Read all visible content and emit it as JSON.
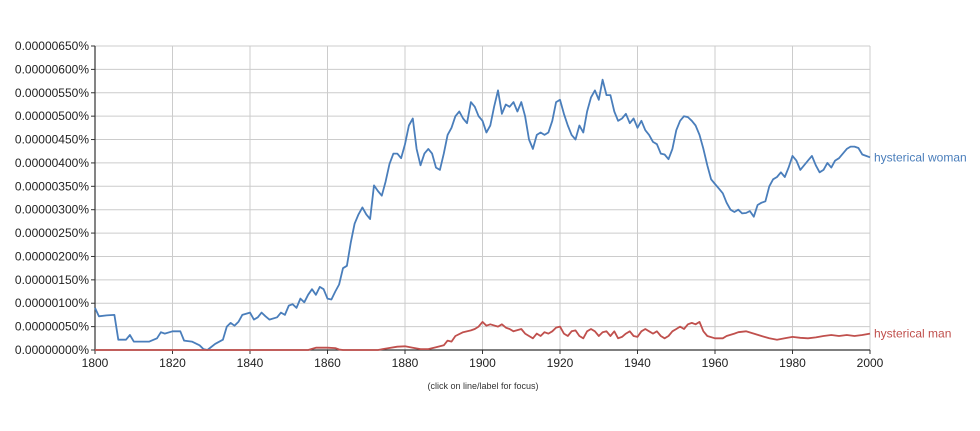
{
  "chart_data": {
    "type": "line",
    "title": "",
    "xlabel": "",
    "ylabel": "",
    "xlim": [
      1800,
      2000
    ],
    "ylim": [
      0,
      6.5e-06
    ],
    "grid": true,
    "x_ticks": [
      1800,
      1820,
      1840,
      1860,
      1880,
      1900,
      1920,
      1940,
      1960,
      1980,
      2000
    ],
    "y_ticks": [
      "0.00000000%",
      "0.00000050%",
      "0.00000100%",
      "0.00000150%",
      "0.00000200%",
      "0.00000250%",
      "0.00000300%",
      "0.00000350%",
      "0.00000400%",
      "0.00000450%",
      "0.00000500%",
      "0.00000550%",
      "0.00000600%",
      "0.00000650%"
    ],
    "footnote": "(click on line/label for focus)",
    "series": [
      {
        "name": "hysterical woman",
        "color": "#4a7ebb",
        "points": [
          [
            1800,
            9e-07
          ],
          [
            1801,
            7.2e-07
          ],
          [
            1803,
            7.4e-07
          ],
          [
            1805,
            7.5e-07
          ],
          [
            1806,
            2.2e-07
          ],
          [
            1808,
            2.2e-07
          ],
          [
            1809,
            3.2e-07
          ],
          [
            1810,
            1.8e-07
          ],
          [
            1812,
            1.8e-07
          ],
          [
            1814,
            1.8e-07
          ],
          [
            1816,
            2.5e-07
          ],
          [
            1817,
            3.8e-07
          ],
          [
            1818,
            3.5e-07
          ],
          [
            1820,
            4e-07
          ],
          [
            1821,
            4e-07
          ],
          [
            1822,
            4e-07
          ],
          [
            1823,
            2e-07
          ],
          [
            1825,
            1.8e-07
          ],
          [
            1827,
            1e-07
          ],
          [
            1828,
            2e-08
          ],
          [
            1829,
            0.0
          ],
          [
            1831,
            1.3e-07
          ],
          [
            1833,
            2.2e-07
          ],
          [
            1834,
            5e-07
          ],
          [
            1835,
            5.8e-07
          ],
          [
            1836,
            5.2e-07
          ],
          [
            1837,
            6e-07
          ],
          [
            1838,
            7.5e-07
          ],
          [
            1840,
            8e-07
          ],
          [
            1841,
            6.5e-07
          ],
          [
            1842,
            7e-07
          ],
          [
            1843,
            8e-07
          ],
          [
            1844,
            7.2e-07
          ],
          [
            1845,
            6.5e-07
          ],
          [
            1847,
            7e-07
          ],
          [
            1848,
            8e-07
          ],
          [
            1849,
            7.5e-07
          ],
          [
            1850,
            9.5e-07
          ],
          [
            1851,
            9.8e-07
          ],
          [
            1852,
            9e-07
          ],
          [
            1853,
            1.1e-06
          ],
          [
            1854,
            1.02e-06
          ],
          [
            1855,
            1.18e-06
          ],
          [
            1856,
            1.3e-06
          ],
          [
            1857,
            1.18e-06
          ],
          [
            1858,
            1.35e-06
          ],
          [
            1859,
            1.3e-06
          ],
          [
            1860,
            1.1e-06
          ],
          [
            1861,
            1.08e-06
          ],
          [
            1862,
            1.25e-06
          ],
          [
            1863,
            1.4e-06
          ],
          [
            1864,
            1.75e-06
          ],
          [
            1865,
            1.8e-06
          ],
          [
            1866,
            2.3e-06
          ],
          [
            1867,
            2.7e-06
          ],
          [
            1868,
            2.9e-06
          ],
          [
            1869,
            3.05e-06
          ],
          [
            1870,
            2.9e-06
          ],
          [
            1871,
            2.8e-06
          ],
          [
            1872,
            3.52e-06
          ],
          [
            1873,
            3.4e-06
          ],
          [
            1874,
            3.3e-06
          ],
          [
            1875,
            3.6e-06
          ],
          [
            1876,
            3.98e-06
          ],
          [
            1877,
            4.2e-06
          ],
          [
            1878,
            4.2e-06
          ],
          [
            1879,
            4.1e-06
          ],
          [
            1880,
            4.4e-06
          ],
          [
            1881,
            4.8e-06
          ],
          [
            1882,
            4.95e-06
          ],
          [
            1883,
            4.3e-06
          ],
          [
            1884,
            3.95e-06
          ],
          [
            1885,
            4.2e-06
          ],
          [
            1886,
            4.3e-06
          ],
          [
            1887,
            4.2e-06
          ],
          [
            1888,
            3.9e-06
          ],
          [
            1889,
            3.85e-06
          ],
          [
            1890,
            4.2e-06
          ],
          [
            1891,
            4.6e-06
          ],
          [
            1892,
            4.75e-06
          ],
          [
            1893,
            5e-06
          ],
          [
            1894,
            5.1e-06
          ],
          [
            1895,
            4.95e-06
          ],
          [
            1896,
            4.85e-06
          ],
          [
            1897,
            5.3e-06
          ],
          [
            1898,
            5.2e-06
          ],
          [
            1899,
            5e-06
          ],
          [
            1900,
            4.9e-06
          ],
          [
            1901,
            4.65e-06
          ],
          [
            1902,
            4.8e-06
          ],
          [
            1903,
            5.2e-06
          ],
          [
            1904,
            5.55e-06
          ],
          [
            1905,
            5.05e-06
          ],
          [
            1906,
            5.25e-06
          ],
          [
            1907,
            5.2e-06
          ],
          [
            1908,
            5.3e-06
          ],
          [
            1909,
            5.1e-06
          ],
          [
            1910,
            5.3e-06
          ],
          [
            1911,
            5e-06
          ],
          [
            1912,
            4.5e-06
          ],
          [
            1913,
            4.3e-06
          ],
          [
            1914,
            4.6e-06
          ],
          [
            1915,
            4.65e-06
          ],
          [
            1916,
            4.6e-06
          ],
          [
            1917,
            4.65e-06
          ],
          [
            1918,
            4.9e-06
          ],
          [
            1919,
            5.3e-06
          ],
          [
            1920,
            5.35e-06
          ],
          [
            1921,
            5.05e-06
          ],
          [
            1922,
            4.8e-06
          ],
          [
            1923,
            4.6e-06
          ],
          [
            1924,
            4.5e-06
          ],
          [
            1925,
            4.8e-06
          ],
          [
            1926,
            4.65e-06
          ],
          [
            1927,
            5.1e-06
          ],
          [
            1928,
            5.4e-06
          ],
          [
            1929,
            5.55e-06
          ],
          [
            1930,
            5.35e-06
          ],
          [
            1931,
            5.78e-06
          ],
          [
            1932,
            5.45e-06
          ],
          [
            1933,
            5.45e-06
          ],
          [
            1934,
            5.1e-06
          ],
          [
            1935,
            4.9e-06
          ],
          [
            1936,
            4.95e-06
          ],
          [
            1937,
            5.05e-06
          ],
          [
            1938,
            4.85e-06
          ],
          [
            1939,
            4.95e-06
          ],
          [
            1940,
            4.75e-06
          ],
          [
            1941,
            4.9e-06
          ],
          [
            1942,
            4.7e-06
          ],
          [
            1943,
            4.6e-06
          ],
          [
            1944,
            4.45e-06
          ],
          [
            1945,
            4.4e-06
          ],
          [
            1946,
            4.2e-06
          ],
          [
            1947,
            4.18e-06
          ],
          [
            1948,
            4.08e-06
          ],
          [
            1949,
            4.3e-06
          ],
          [
            1950,
            4.7e-06
          ],
          [
            1951,
            4.9e-06
          ],
          [
            1952,
            5e-06
          ],
          [
            1953,
            4.98e-06
          ],
          [
            1954,
            4.9e-06
          ],
          [
            1955,
            4.8e-06
          ],
          [
            1956,
            4.6e-06
          ],
          [
            1957,
            4.3e-06
          ],
          [
            1958,
            3.95e-06
          ],
          [
            1959,
            3.65e-06
          ],
          [
            1960,
            3.55e-06
          ],
          [
            1961,
            3.45e-06
          ],
          [
            1962,
            3.35e-06
          ],
          [
            1963,
            3.15e-06
          ],
          [
            1964,
            3e-06
          ],
          [
            1965,
            2.95e-06
          ],
          [
            1966,
            3e-06
          ],
          [
            1967,
            2.92e-06
          ],
          [
            1968,
            2.93e-06
          ],
          [
            1969,
            2.97e-06
          ],
          [
            1970,
            2.85e-06
          ],
          [
            1971,
            3.1e-06
          ],
          [
            1972,
            3.15e-06
          ],
          [
            1973,
            3.18e-06
          ],
          [
            1974,
            3.5e-06
          ],
          [
            1975,
            3.65e-06
          ],
          [
            1976,
            3.7e-06
          ],
          [
            1977,
            3.8e-06
          ],
          [
            1978,
            3.7e-06
          ],
          [
            1979,
            3.9e-06
          ],
          [
            1980,
            4.15e-06
          ],
          [
            1981,
            4.05e-06
          ],
          [
            1982,
            3.85e-06
          ],
          [
            1983,
            3.95e-06
          ],
          [
            1984,
            4.05e-06
          ],
          [
            1985,
            4.15e-06
          ],
          [
            1986,
            3.95e-06
          ],
          [
            1987,
            3.8e-06
          ],
          [
            1988,
            3.85e-06
          ],
          [
            1989,
            4e-06
          ],
          [
            1990,
            3.9e-06
          ],
          [
            1991,
            4.05e-06
          ],
          [
            1992,
            4.1e-06
          ],
          [
            1993,
            4.2e-06
          ],
          [
            1994,
            4.3e-06
          ],
          [
            1995,
            4.35e-06
          ],
          [
            1996,
            4.35e-06
          ],
          [
            1997,
            4.32e-06
          ],
          [
            1998,
            4.18e-06
          ],
          [
            1999,
            4.15e-06
          ],
          [
            2000,
            4.12e-06
          ]
        ]
      },
      {
        "name": "hysterical man",
        "color": "#c0504d",
        "points": [
          [
            1800,
            0.0
          ],
          [
            1855,
            0.0
          ],
          [
            1857,
            5e-08
          ],
          [
            1860,
            5e-08
          ],
          [
            1862,
            4e-08
          ],
          [
            1863,
            1e-08
          ],
          [
            1864,
            0.0
          ],
          [
            1873,
            0.0
          ],
          [
            1875,
            3e-08
          ],
          [
            1878,
            7e-08
          ],
          [
            1880,
            8e-08
          ],
          [
            1882,
            5e-08
          ],
          [
            1884,
            2e-08
          ],
          [
            1886,
            2e-08
          ],
          [
            1888,
            6e-08
          ],
          [
            1890,
            1e-07
          ],
          [
            1891,
            2e-07
          ],
          [
            1892,
            1.8e-07
          ],
          [
            1893,
            3e-07
          ],
          [
            1895,
            3.8e-07
          ],
          [
            1897,
            4.2e-07
          ],
          [
            1898,
            4.5e-07
          ],
          [
            1899,
            5e-07
          ],
          [
            1900,
            6e-07
          ],
          [
            1901,
            5.2e-07
          ],
          [
            1902,
            5.5e-07
          ],
          [
            1904,
            5e-07
          ],
          [
            1905,
            5.5e-07
          ],
          [
            1906,
            4.8e-07
          ],
          [
            1907,
            4.5e-07
          ],
          [
            1908,
            4e-07
          ],
          [
            1910,
            4.5e-07
          ],
          [
            1911,
            3.5e-07
          ],
          [
            1912,
            3e-07
          ],
          [
            1913,
            2.5e-07
          ],
          [
            1914,
            3.5e-07
          ],
          [
            1915,
            3e-07
          ],
          [
            1916,
            3.8e-07
          ],
          [
            1917,
            3.5e-07
          ],
          [
            1918,
            4e-07
          ],
          [
            1919,
            4.8e-07
          ],
          [
            1920,
            5e-07
          ],
          [
            1921,
            3.5e-07
          ],
          [
            1922,
            3e-07
          ],
          [
            1923,
            4e-07
          ],
          [
            1924,
            4.2e-07
          ],
          [
            1925,
            3e-07
          ],
          [
            1926,
            2.5e-07
          ],
          [
            1927,
            4e-07
          ],
          [
            1928,
            4.5e-07
          ],
          [
            1929,
            4e-07
          ],
          [
            1930,
            3e-07
          ],
          [
            1931,
            3.8e-07
          ],
          [
            1932,
            4e-07
          ],
          [
            1933,
            3e-07
          ],
          [
            1934,
            4e-07
          ],
          [
            1935,
            2.5e-07
          ],
          [
            1936,
            2.8e-07
          ],
          [
            1937,
            3.5e-07
          ],
          [
            1938,
            4e-07
          ],
          [
            1939,
            3e-07
          ],
          [
            1940,
            2.8e-07
          ],
          [
            1941,
            4e-07
          ],
          [
            1942,
            4.5e-07
          ],
          [
            1943,
            4e-07
          ],
          [
            1944,
            3.5e-07
          ],
          [
            1945,
            4e-07
          ],
          [
            1946,
            3e-07
          ],
          [
            1947,
            2.5e-07
          ],
          [
            1948,
            3e-07
          ],
          [
            1949,
            4e-07
          ],
          [
            1950,
            4.5e-07
          ],
          [
            1951,
            5e-07
          ],
          [
            1952,
            4.5e-07
          ],
          [
            1953,
            5.5e-07
          ],
          [
            1954,
            5.8e-07
          ],
          [
            1955,
            5.5e-07
          ],
          [
            1956,
            6e-07
          ],
          [
            1957,
            4e-07
          ],
          [
            1958,
            3e-07
          ],
          [
            1960,
            2.5e-07
          ],
          [
            1962,
            2.5e-07
          ],
          [
            1963,
            3e-07
          ],
          [
            1965,
            3.5e-07
          ],
          [
            1966,
            3.8e-07
          ],
          [
            1968,
            4e-07
          ],
          [
            1970,
            3.5e-07
          ],
          [
            1972,
            3e-07
          ],
          [
            1974,
            2.5e-07
          ],
          [
            1976,
            2.2e-07
          ],
          [
            1978,
            2.5e-07
          ],
          [
            1980,
            2.8e-07
          ],
          [
            1982,
            2.6e-07
          ],
          [
            1984,
            2.5e-07
          ],
          [
            1986,
            2.7e-07
          ],
          [
            1988,
            3e-07
          ],
          [
            1990,
            3.2e-07
          ],
          [
            1992,
            3e-07
          ],
          [
            1994,
            3.2e-07
          ],
          [
            1996,
            3e-07
          ],
          [
            1998,
            3.2e-07
          ],
          [
            2000,
            3.5e-07
          ]
        ]
      }
    ]
  }
}
